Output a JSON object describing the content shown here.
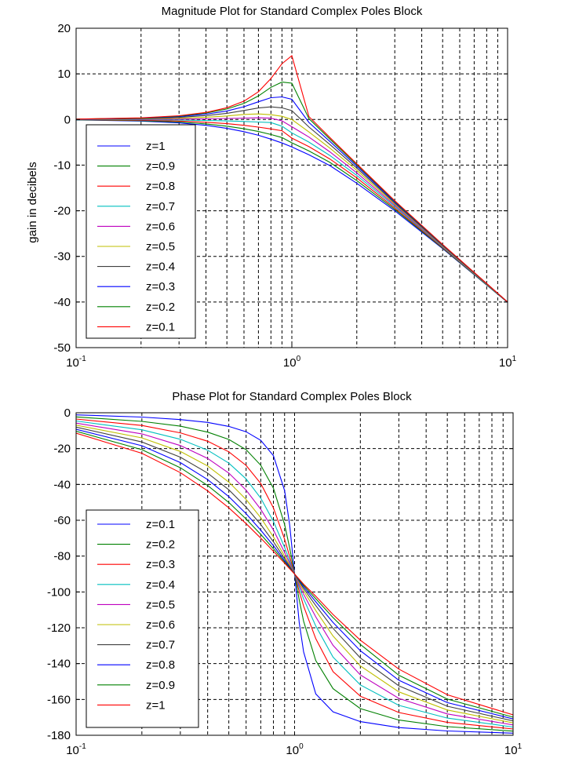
{
  "chart_data": [
    {
      "id": "magnitude",
      "type": "line",
      "title": "Magnitude Plot for Standard Complex Poles Block",
      "xlabel": "",
      "ylabel": "gain in decibels",
      "xscale": "log",
      "xlim": [
        0.1,
        10
      ],
      "ylim": [
        -50,
        20
      ],
      "grid": true,
      "legend_position": "lower-left",
      "x_ticks": [
        {
          "base": "10",
          "exp": "-1",
          "value": 0.1
        },
        {
          "base": "10",
          "exp": "0",
          "value": 1
        },
        {
          "base": "10",
          "exp": "1",
          "value": 10
        }
      ],
      "y_ticks": [
        "20",
        "10",
        "0",
        "-10",
        "-20",
        "-30",
        "-40",
        "-50"
      ],
      "y_tick_values": [
        20,
        10,
        0,
        -10,
        -20,
        -30,
        -40,
        -50
      ],
      "x": [
        0.1,
        0.2,
        0.3,
        0.4,
        0.5,
        0.6,
        0.7,
        0.8,
        0.9,
        1,
        1.2,
        1.5,
        2,
        3,
        5,
        10
      ],
      "series": [
        {
          "name": "z=1",
          "color": "#0000ff",
          "values": [
            -0.09,
            -0.34,
            -0.75,
            -1.28,
            -1.94,
            -2.67,
            -3.46,
            -4.3,
            -5.15,
            -6.02,
            -7.73,
            -10.1,
            -13.98,
            -20.0,
            -28.3,
            -40.09
          ]
        },
        {
          "name": "z=0.9",
          "color": "#008000",
          "values": [
            -0.07,
            -0.26,
            -0.56,
            -0.97,
            -1.46,
            -2.03,
            -2.64,
            -3.29,
            -3.95,
            -5.11,
            -6.9,
            -9.4,
            -13.4,
            -19.7,
            -28.2,
            -40.07
          ]
        },
        {
          "name": "z=0.8",
          "color": "#ff0000",
          "values": [
            -0.04,
            -0.16,
            -0.35,
            -0.6,
            -0.92,
            -1.28,
            -1.67,
            -2.07,
            -2.47,
            -4.08,
            -5.96,
            -8.65,
            -12.8,
            -19.4,
            -28.06,
            -40.05
          ]
        },
        {
          "name": "z=0.7",
          "color": "#00bfbf",
          "values": [
            -0.02,
            -0.06,
            -0.12,
            -0.21,
            -0.31,
            -0.43,
            -0.55,
            -0.68,
            -1.47,
            -2.92,
            -4.96,
            -7.88,
            -12.24,
            -19.08,
            -27.93,
            -40.04
          ]
        },
        {
          "name": "z=0.6",
          "color": "#bf00bf",
          "values": [
            0.01,
            0.03,
            0.08,
            0.14,
            0.22,
            0.31,
            0.38,
            0.29,
            -0.3,
            -1.58,
            -3.85,
            -7.08,
            -11.7,
            -18.8,
            -27.82,
            -40.03
          ]
        },
        {
          "name": "z=0.5",
          "color": "#bfbf00",
          "values": [
            0.03,
            0.12,
            0.28,
            0.5,
            0.78,
            1.11,
            1.22,
            1.05,
            0.71,
            0.0,
            -2.74,
            -6.26,
            -11.14,
            -18.55,
            -27.71,
            -40.02
          ]
        },
        {
          "name": "z=0.4",
          "color": "#404040",
          "values": [
            0.05,
            0.21,
            0.47,
            0.85,
            1.36,
            1.98,
            2.53,
            2.76,
            2.56,
            1.94,
            -1.66,
            -5.48,
            -10.65,
            -18.31,
            -27.6,
            -40.01
          ]
        },
        {
          "name": "z=0.3",
          "color": "#0000ff",
          "values": [
            0.07,
            0.28,
            0.63,
            1.16,
            1.87,
            2.8,
            3.88,
            4.78,
            4.95,
            4.44,
            -0.66,
            -4.8,
            -10.24,
            -18.09,
            -27.51,
            -40.0
          ]
        },
        {
          "name": "z=0.2",
          "color": "#008000",
          "values": [
            0.08,
            0.33,
            0.76,
            1.4,
            2.3,
            3.52,
            5.15,
            7.05,
            8.21,
            7.96,
            0.19,
            -4.28,
            -9.92,
            -17.92,
            -27.44,
            -40.0
          ]
        },
        {
          "name": "z=0.1",
          "color": "#ff0000",
          "values": [
            0.09,
            0.36,
            0.83,
            1.55,
            2.58,
            4.03,
            6.09,
            8.98,
            12.22,
            13.98,
            0.64,
            -3.94,
            -9.72,
            -17.8,
            -27.39,
            -40.0
          ]
        }
      ]
    },
    {
      "id": "phase",
      "type": "line",
      "title": "Phase Plot for Standard Complex Poles Block",
      "xlabel": "",
      "ylabel": "",
      "xscale": "log",
      "xlim": [
        0.1,
        10
      ],
      "ylim": [
        -180,
        0
      ],
      "grid": true,
      "legend_position": "lower-left",
      "x_ticks": [
        {
          "base": "10",
          "exp": "-1",
          "value": 0.1
        },
        {
          "base": "10",
          "exp": "0",
          "value": 1
        },
        {
          "base": "10",
          "exp": "1",
          "value": 10
        }
      ],
      "y_ticks": [
        "0",
        "-20",
        "-40",
        "-60",
        "-80",
        "-100",
        "-120",
        "-140",
        "-160",
        "-180"
      ],
      "y_tick_values": [
        0,
        -20,
        -40,
        -60,
        -80,
        -100,
        -120,
        -140,
        -160,
        -180
      ],
      "x": [
        0.1,
        0.2,
        0.3,
        0.4,
        0.5,
        0.6,
        0.7,
        0.8,
        0.9,
        0.95,
        1,
        1.05,
        1.1,
        1.25,
        1.5,
        2,
        3,
        5,
        10
      ],
      "series": [
        {
          "name": "z=0.1",
          "color": "#0000ff",
          "values": [
            -1.2,
            -2.4,
            -3.8,
            -5.4,
            -7.6,
            -10.6,
            -15.4,
            -23.9,
            -43.5,
            -62.9,
            -90,
            -117.1,
            -133.5,
            -156.9,
            -166.9,
            -172.4,
            -175.7,
            -177.6,
            -178.8
          ]
        },
        {
          "name": "z=0.2",
          "color": "#008000",
          "values": [
            -2.3,
            -4.8,
            -7.5,
            -10.8,
            -14.9,
            -20.6,
            -29.3,
            -42.1,
            -62.4,
            -75.6,
            -90,
            -104.4,
            -116.4,
            -138.3,
            -154.0,
            -165.1,
            -171.5,
            -175.2,
            -177.7
          ]
        },
        {
          "name": "z=0.3",
          "color": "#ff0000",
          "values": [
            -3.5,
            -7.1,
            -11.2,
            -15.9,
            -21.8,
            -29.4,
            -39.5,
            -53.1,
            -70.6,
            -80.3,
            -90,
            -99.7,
            -107.9,
            -126.1,
            -144.5,
            -158.2,
            -167.3,
            -172.8,
            -176.5
          ]
        },
        {
          "name": "z=0.4",
          "color": "#00bfbf",
          "values": [
            -4.6,
            -9.5,
            -14.8,
            -20.9,
            -28.1,
            -36.9,
            -47.7,
            -60.6,
            -75.2,
            -82.6,
            -90,
            -97.5,
            -103.9,
            -119.0,
            -136.4,
            -151.9,
            -163.3,
            -170.4,
            -175.4
          ]
        },
        {
          "name": "z=0.5",
          "color": "#bf00bf",
          "values": [
            -5.8,
            -11.8,
            -18.3,
            -25.5,
            -33.7,
            -43.2,
            -53.9,
            -65.4,
            -78.0,
            -83.9,
            -90,
            -96.1,
            -101.3,
            -113.9,
            -129.8,
            -146.3,
            -159.4,
            -168.1,
            -174.2
          ]
        },
        {
          "name": "z=0.6",
          "color": "#bfbf00",
          "values": [
            -6.9,
            -14.0,
            -21.6,
            -29.7,
            -38.7,
            -48.4,
            -58.6,
            -69.3,
            -80.0,
            -85.0,
            -90,
            -95.0,
            -99.4,
            -110.4,
            -124.6,
            -141.3,
            -155.8,
            -165.9,
            -173.1
          ]
        },
        {
          "name": "z=0.7",
          "color": "#404040",
          "values": [
            -8.0,
            -16.3,
            -24.8,
            -33.7,
            -43.0,
            -52.7,
            -62.4,
            -72.0,
            -81.4,
            -85.8,
            -90,
            -94.2,
            -98.1,
            -107.6,
            -120.3,
            -136.8,
            -152.4,
            -163.8,
            -172.0
          ]
        },
        {
          "name": "z=0.8",
          "color": "#0000ff",
          "values": [
            -9.2,
            -18.4,
            -27.8,
            -37.3,
            -46.8,
            -56.3,
            -65.5,
            -74.2,
            -82.5,
            -86.3,
            -90,
            -93.7,
            -97.1,
            -105.5,
            -117.0,
            -132.8,
            -149.3,
            -161.8,
            -170.9
          ]
        },
        {
          "name": "z=0.9",
          "color": "#008000",
          "values": [
            -10.3,
            -20.6,
            -30.7,
            -40.6,
            -50.1,
            -59.3,
            -67.9,
            -75.9,
            -83.3,
            -86.7,
            -90,
            -93.3,
            -96.3,
            -103.8,
            -114.3,
            -129.3,
            -146.5,
            -159.8,
            -169.9
          ]
        },
        {
          "name": "z=1",
          "color": "#ff0000",
          "values": [
            -11.4,
            -22.6,
            -33.4,
            -43.6,
            -53.1,
            -61.9,
            -70.0,
            -77.3,
            -84.0,
            -87.1,
            -90,
            -92.9,
            -95.7,
            -102.4,
            -112.6,
            -126.9,
            -143.1,
            -157.4,
            -168.6
          ]
        }
      ]
    }
  ]
}
